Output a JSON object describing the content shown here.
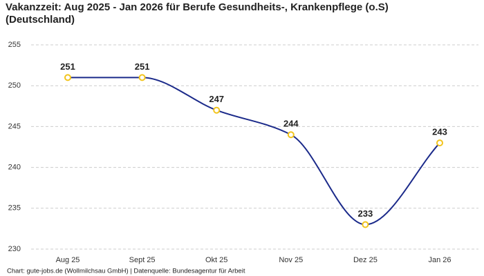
{
  "chart_data": {
    "type": "line",
    "title": "Vakanzzeit: Aug 2025 - Jan 2026 für Berufe Gesundheits-, Krankenpflege (o.S)",
    "subtitle": "(Deutschland)",
    "footer": "Chart: gute-jobs.de (Wollmilchsau GmbH) | Datenquelle: Bundesagentur für Arbeit",
    "categories": [
      "Aug 25",
      "Sept 25",
      "Okt 25",
      "Nov 25",
      "Dez 25",
      "Jan 26"
    ],
    "values": [
      251,
      251,
      247,
      244,
      233,
      243
    ],
    "color": "#1b2a8a",
    "marker_color": "#f2c41c",
    "ylim": [
      230,
      255
    ],
    "yticks": [
      230,
      235,
      240,
      245,
      250,
      255
    ],
    "grid": true
  }
}
